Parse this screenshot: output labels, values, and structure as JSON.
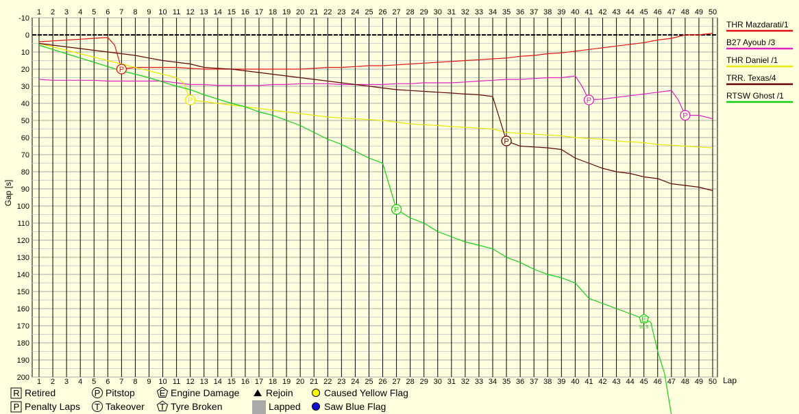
{
  "chart_data": {
    "type": "line",
    "title": "",
    "xlabel": "Lap",
    "ylabel": "Gap [s]",
    "xlim": [
      1,
      50
    ],
    "ylim": [
      -10,
      200
    ],
    "y_inverted": true,
    "x_ticks": [
      1,
      2,
      3,
      4,
      5,
      6,
      7,
      8,
      9,
      10,
      11,
      12,
      13,
      14,
      15,
      16,
      17,
      18,
      19,
      20,
      21,
      22,
      23,
      24,
      25,
      26,
      27,
      28,
      29,
      30,
      31,
      32,
      33,
      34,
      35,
      36,
      37,
      38,
      39,
      40,
      41,
      42,
      43,
      44,
      45,
      46,
      47,
      48,
      49,
      50
    ],
    "y_ticks": [
      -10,
      0,
      10,
      20,
      30,
      40,
      50,
      60,
      70,
      80,
      90,
      100,
      110,
      120,
      130,
      140,
      150,
      160,
      170,
      180,
      190,
      200
    ],
    "grid": true,
    "legend_position": "right",
    "series": [
      {
        "name": "THR Mazdarati/1",
        "color": "#e01010",
        "points": [
          [
            1,
            4
          ],
          [
            2,
            3.5
          ],
          [
            3,
            3
          ],
          [
            4,
            2.5
          ],
          [
            5,
            2
          ],
          [
            6,
            1.5
          ],
          [
            6.5,
            6
          ],
          [
            7,
            20
          ],
          [
            8,
            19
          ],
          [
            9,
            19
          ],
          [
            10,
            19
          ],
          [
            11,
            19
          ],
          [
            12,
            19.5
          ],
          [
            13,
            20
          ],
          [
            14,
            20
          ],
          [
            15,
            20
          ],
          [
            16,
            20
          ],
          [
            17,
            20
          ],
          [
            18,
            20
          ],
          [
            19,
            20
          ],
          [
            20,
            20
          ],
          [
            21,
            19.5
          ],
          [
            22,
            19
          ],
          [
            23,
            19
          ],
          [
            24,
            18.5
          ],
          [
            25,
            18
          ],
          [
            26,
            18
          ],
          [
            27,
            17.5
          ],
          [
            28,
            17
          ],
          [
            29,
            16.5
          ],
          [
            30,
            16
          ],
          [
            31,
            15.5
          ],
          [
            32,
            15
          ],
          [
            33,
            14.5
          ],
          [
            34,
            14
          ],
          [
            35,
            13.5
          ],
          [
            36,
            12.5
          ],
          [
            37,
            12
          ],
          [
            38,
            11
          ],
          [
            39,
            10.5
          ],
          [
            40,
            9.5
          ],
          [
            41,
            8.5
          ],
          [
            42,
            7.5
          ],
          [
            43,
            6.5
          ],
          [
            44,
            5.5
          ],
          [
            45,
            4.5
          ],
          [
            46,
            3
          ],
          [
            47,
            2
          ],
          [
            48,
            0
          ],
          [
            49,
            0
          ],
          [
            50,
            -1
          ]
        ]
      },
      {
        "name": "B27 Ayoub /3",
        "color": "#e020c0",
        "points": [
          [
            1,
            26
          ],
          [
            2,
            26.5
          ],
          [
            3,
            26.5
          ],
          [
            4,
            26.5
          ],
          [
            5,
            26.5
          ],
          [
            6,
            27
          ],
          [
            7,
            27
          ],
          [
            8,
            27
          ],
          [
            9,
            27
          ],
          [
            10,
            27
          ],
          [
            11,
            28
          ],
          [
            12,
            29
          ],
          [
            13,
            29
          ],
          [
            14,
            29.5
          ],
          [
            15,
            29.5
          ],
          [
            16,
            29.5
          ],
          [
            17,
            29.5
          ],
          [
            18,
            29
          ],
          [
            19,
            29
          ],
          [
            20,
            28.5
          ],
          [
            21,
            28.5
          ],
          [
            22,
            28.5
          ],
          [
            23,
            29
          ],
          [
            24,
            29
          ],
          [
            25,
            29
          ],
          [
            26,
            29
          ],
          [
            27,
            28.5
          ],
          [
            28,
            28.5
          ],
          [
            29,
            28
          ],
          [
            30,
            28
          ],
          [
            31,
            28
          ],
          [
            32,
            27.5
          ],
          [
            33,
            27
          ],
          [
            34,
            26.5
          ],
          [
            35,
            26
          ],
          [
            36,
            26
          ],
          [
            37,
            25.5
          ],
          [
            38,
            25
          ],
          [
            39,
            25
          ],
          [
            40,
            24
          ],
          [
            40.5,
            30
          ],
          [
            41,
            38
          ],
          [
            42,
            37.5
          ],
          [
            43,
            36.5
          ],
          [
            44,
            35.5
          ],
          [
            45,
            34.5
          ],
          [
            46,
            33.5
          ],
          [
            47,
            32.5
          ],
          [
            47.5,
            38
          ],
          [
            48,
            47
          ],
          [
            49,
            47
          ],
          [
            50,
            49
          ]
        ]
      },
      {
        "name": "THR Daniel /1",
        "color": "#e8e800",
        "points": [
          [
            1,
            5
          ],
          [
            2,
            7
          ],
          [
            3,
            9
          ],
          [
            4,
            11
          ],
          [
            5,
            13
          ],
          [
            6,
            15
          ],
          [
            7,
            17
          ],
          [
            8,
            19
          ],
          [
            9,
            21
          ],
          [
            10,
            23
          ],
          [
            11,
            25
          ],
          [
            11.5,
            28
          ],
          [
            12,
            38
          ],
          [
            13,
            39
          ],
          [
            14,
            40
          ],
          [
            15,
            41
          ],
          [
            16,
            42
          ],
          [
            17,
            43
          ],
          [
            18,
            44
          ],
          [
            19,
            45
          ],
          [
            20,
            46
          ],
          [
            21,
            47
          ],
          [
            22,
            48
          ],
          [
            23,
            48.5
          ],
          [
            24,
            49
          ],
          [
            25,
            49.5
          ],
          [
            26,
            50
          ],
          [
            27,
            51
          ],
          [
            28,
            52
          ],
          [
            29,
            52.5
          ],
          [
            30,
            53
          ],
          [
            31,
            53.5
          ],
          [
            32,
            54
          ],
          [
            33,
            54.5
          ],
          [
            34,
            55
          ],
          [
            35,
            57
          ],
          [
            36,
            57.5
          ],
          [
            37,
            58
          ],
          [
            38,
            58.5
          ],
          [
            39,
            59
          ],
          [
            40,
            60
          ],
          [
            41,
            60.5
          ],
          [
            42,
            61
          ],
          [
            43,
            62
          ],
          [
            44,
            62.5
          ],
          [
            45,
            63
          ],
          [
            46,
            64
          ],
          [
            47,
            64.5
          ],
          [
            48,
            65
          ],
          [
            49,
            65.5
          ],
          [
            50,
            66
          ]
        ]
      },
      {
        "name": "TRR. Texas/4",
        "color": "#600000",
        "points": [
          [
            1,
            5
          ],
          [
            2,
            6
          ],
          [
            3,
            7
          ],
          [
            4,
            8
          ],
          [
            5,
            9
          ],
          [
            6,
            10
          ],
          [
            7,
            11
          ],
          [
            8,
            12
          ],
          [
            9,
            13.5
          ],
          [
            10,
            15
          ],
          [
            11,
            16
          ],
          [
            12,
            17
          ],
          [
            13,
            19
          ],
          [
            14,
            19.5
          ],
          [
            15,
            20
          ],
          [
            16,
            21
          ],
          [
            17,
            22
          ],
          [
            18,
            23
          ],
          [
            19,
            24
          ],
          [
            20,
            25
          ],
          [
            21,
            26
          ],
          [
            22,
            27
          ],
          [
            23,
            28
          ],
          [
            24,
            29
          ],
          [
            25,
            30
          ],
          [
            26,
            31
          ],
          [
            27,
            32
          ],
          [
            28,
            32.5
          ],
          [
            29,
            33
          ],
          [
            30,
            33.5
          ],
          [
            31,
            34
          ],
          [
            32,
            34.5
          ],
          [
            33,
            35
          ],
          [
            34,
            36
          ],
          [
            35,
            62
          ],
          [
            36,
            65
          ],
          [
            37,
            65.5
          ],
          [
            38,
            66
          ],
          [
            39,
            67
          ],
          [
            40,
            72
          ],
          [
            41,
            75
          ],
          [
            42,
            78
          ],
          [
            43,
            80
          ],
          [
            44,
            81
          ],
          [
            45,
            83
          ],
          [
            46,
            84
          ],
          [
            47,
            87
          ],
          [
            48,
            88
          ],
          [
            49,
            89
          ],
          [
            50,
            91
          ]
        ]
      },
      {
        "name": "RTSW Ghost /1",
        "color": "#10d010",
        "points": [
          [
            1,
            6
          ],
          [
            2,
            8.5
          ],
          [
            3,
            11
          ],
          [
            4,
            13.5
          ],
          [
            5,
            16
          ],
          [
            6,
            18.5
          ],
          [
            7,
            21
          ],
          [
            8,
            23
          ],
          [
            9,
            25
          ],
          [
            10,
            27.5
          ],
          [
            11,
            30
          ],
          [
            12,
            32
          ],
          [
            13,
            35
          ],
          [
            14,
            37.5
          ],
          [
            15,
            40
          ],
          [
            16,
            42
          ],
          [
            17,
            45
          ],
          [
            18,
            47
          ],
          [
            19,
            50
          ],
          [
            20,
            53
          ],
          [
            21,
            57
          ],
          [
            22,
            61
          ],
          [
            23,
            64
          ],
          [
            24,
            68
          ],
          [
            25,
            72
          ],
          [
            26,
            75
          ],
          [
            27,
            102
          ],
          [
            28,
            107
          ],
          [
            29,
            110
          ],
          [
            30,
            115
          ],
          [
            31,
            118
          ],
          [
            32,
            121
          ],
          [
            33,
            123
          ],
          [
            34,
            125
          ],
          [
            35,
            130
          ],
          [
            36,
            133
          ],
          [
            37,
            137
          ],
          [
            38,
            140
          ],
          [
            39,
            142
          ],
          [
            40,
            145
          ],
          [
            41,
            154
          ],
          [
            42,
            157
          ],
          [
            43,
            160
          ],
          [
            44,
            163
          ],
          [
            45,
            166
          ],
          [
            45.5,
            168
          ],
          [
            46,
            185
          ],
          [
            46.5,
            198
          ],
          [
            47,
            222
          ]
        ]
      }
    ],
    "markers": [
      {
        "series": "THR Mazdarati/1",
        "lap": 7,
        "gap": 20,
        "symbol": "P",
        "shape": "circle"
      },
      {
        "series": "B27 Ayoub /3",
        "lap": 41,
        "gap": 38,
        "symbol": "P",
        "shape": "circle"
      },
      {
        "series": "B27 Ayoub /3",
        "lap": 48,
        "gap": 47,
        "symbol": "P",
        "shape": "circle"
      },
      {
        "series": "THR Daniel /1",
        "lap": 12,
        "gap": 38,
        "symbol": "P",
        "shape": "circle"
      },
      {
        "series": "TRR. Texas/4",
        "lap": 35,
        "gap": 62,
        "symbol": "P",
        "shape": "circle"
      },
      {
        "series": "RTSW Ghost /1",
        "lap": 27,
        "gap": 102,
        "symbol": "P",
        "shape": "circle"
      },
      {
        "series": "RTSW Ghost /1",
        "lap": 45,
        "gap": 166,
        "symbol": "E",
        "shape": "pentagon",
        "note": "99.5"
      }
    ]
  },
  "legend_key": [
    {
      "symbol": "R",
      "shape": "square",
      "label": "Retired"
    },
    {
      "symbol": "P",
      "shape": "square",
      "label": "Penalty Laps"
    },
    {
      "symbol": "P",
      "shape": "circle",
      "label": "Pitstop"
    },
    {
      "symbol": "T",
      "shape": "circle",
      "label": "Takeover"
    },
    {
      "symbol": "E",
      "shape": "pentagon",
      "label": "Engine Damage"
    },
    {
      "symbol": "T",
      "shape": "pentagon",
      "label": "Tyre Broken"
    },
    {
      "symbol": "",
      "shape": "triangle",
      "label": "Rejoin"
    },
    {
      "symbol": "",
      "shape": "gray-square",
      "label": "Lapped"
    },
    {
      "symbol": "",
      "shape": "yellow-dot",
      "label": "Caused Yellow Flag"
    },
    {
      "symbol": "",
      "shape": "blue-dot",
      "label": "Saw Blue Flag"
    }
  ]
}
